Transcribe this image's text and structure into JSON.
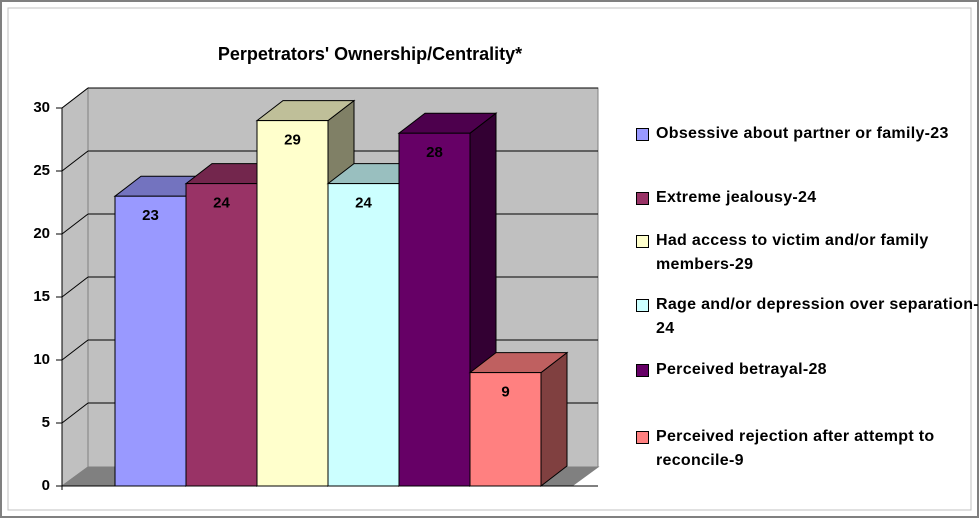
{
  "chart_data": {
    "type": "bar3d",
    "title": "Perpetrators' Ownership/Centrality*",
    "series": [
      {
        "name": "Obsessive about partner or family-23",
        "color": "#9999ff",
        "values": [
          23
        ]
      },
      {
        "name": "Extreme jealousy-24",
        "color": "#993366",
        "values": [
          24
        ]
      },
      {
        "name": "Had access to victim and/or family members-29",
        "color": "#ffffcc",
        "values": [
          29
        ]
      },
      {
        "name": "Rage and/or depression over separation-24",
        "color": "#ccffff",
        "values": [
          24
        ]
      },
      {
        "name": "Perceived betrayal-28",
        "color": "#660066",
        "values": [
          28
        ]
      },
      {
        "name": "Perceived rejection after attempt to reconcile-9",
        "color": "#ff8080",
        "values": [
          9
        ]
      }
    ],
    "ylim": [
      0,
      30
    ],
    "yticks": [
      0,
      5,
      10,
      15,
      20,
      25,
      30
    ],
    "grid": true,
    "legend": "right"
  }
}
